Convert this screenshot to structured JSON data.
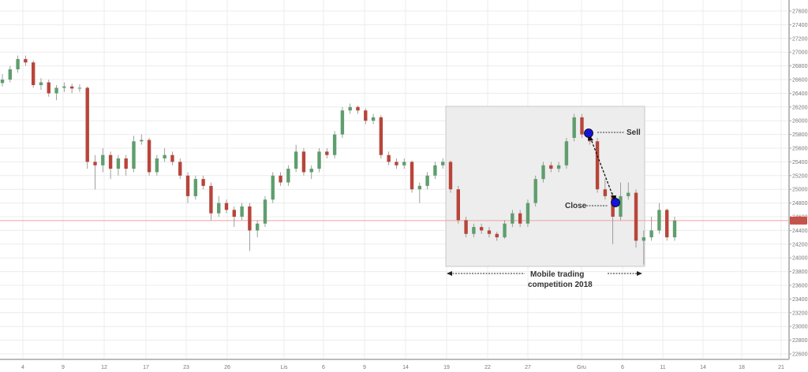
{
  "chart_data": {
    "type": "candlestick",
    "title": "",
    "ylim": [
      22500,
      27700
    ],
    "y_ticks": [
      22600,
      22800,
      23000,
      23200,
      23400,
      23600,
      23800,
      24000,
      24200,
      24400,
      24600,
      24800,
      25000,
      25200,
      25400,
      25600,
      25800,
      26000,
      26200,
      26400,
      26600,
      26800,
      27000,
      27200,
      27400,
      27600
    ],
    "x_tick_labels": [
      "4",
      "9",
      "12",
      "17",
      "23",
      "26",
      "Lis",
      "6",
      "9",
      "14",
      "19",
      "22",
      "27",
      "Gru",
      "6",
      "11",
      "14",
      "18",
      "21"
    ],
    "grid": true,
    "current_price": 24544,
    "colors": {
      "up": "#5f9e6e",
      "down": "#b8453a",
      "current_line": "#f0a0a0",
      "current_label_bg": "#d64a3f",
      "marker": "#1414d8",
      "highlight_box": "#ededed"
    },
    "candles_ohlc": [
      [
        26550,
        26680,
        26500,
        26600
      ],
      [
        26600,
        26800,
        26560,
        26750
      ],
      [
        26750,
        26950,
        26700,
        26900
      ],
      [
        26900,
        26950,
        26800,
        26850
      ],
      [
        26850,
        26880,
        26480,
        26520
      ],
      [
        26520,
        26620,
        26450,
        26560
      ],
      [
        26560,
        26600,
        26350,
        26400
      ],
      [
        26400,
        26520,
        26300,
        26480
      ],
      [
        26480,
        26560,
        26420,
        26500
      ],
      [
        26500,
        26540,
        26400,
        26470
      ],
      [
        26470,
        26530,
        26420,
        26480
      ],
      [
        26480,
        26500,
        25300,
        25400
      ],
      [
        25400,
        25500,
        25000,
        25350
      ],
      [
        25350,
        25600,
        25250,
        25500
      ],
      [
        25500,
        25550,
        25150,
        25300
      ],
      [
        25300,
        25500,
        25200,
        25450
      ],
      [
        25450,
        25500,
        25200,
        25300
      ],
      [
        25300,
        25780,
        25250,
        25700
      ],
      [
        25700,
        25800,
        25650,
        25720
      ],
      [
        25720,
        25750,
        25200,
        25250
      ],
      [
        25250,
        25500,
        25200,
        25450
      ],
      [
        25450,
        25600,
        25400,
        25500
      ],
      [
        25500,
        25550,
        25350,
        25400
      ],
      [
        25400,
        25450,
        25150,
        25200
      ],
      [
        25200,
        25250,
        24800,
        24900
      ],
      [
        24900,
        25200,
        24850,
        25150
      ],
      [
        25150,
        25200,
        25000,
        25050
      ],
      [
        25050,
        25100,
        24550,
        24650
      ],
      [
        24650,
        24900,
        24600,
        24800
      ],
      [
        24800,
        24850,
        24650,
        24700
      ],
      [
        24700,
        24750,
        24450,
        24600
      ],
      [
        24600,
        24800,
        24550,
        24750
      ],
      [
        24750,
        24800,
        24100,
        24400
      ],
      [
        24400,
        24550,
        24300,
        24500
      ],
      [
        24500,
        24900,
        24450,
        24850
      ],
      [
        24850,
        25250,
        24800,
        25200
      ],
      [
        25200,
        25250,
        25050,
        25100
      ],
      [
        25100,
        25350,
        25050,
        25300
      ],
      [
        25300,
        25650,
        25250,
        25550
      ],
      [
        25550,
        25600,
        25200,
        25250
      ],
      [
        25250,
        25350,
        25150,
        25300
      ],
      [
        25300,
        25600,
        25250,
        25550
      ],
      [
        25550,
        25600,
        25450,
        25500
      ],
      [
        25500,
        25850,
        25450,
        25800
      ],
      [
        25800,
        26200,
        25750,
        26150
      ],
      [
        26150,
        26250,
        26100,
        26200
      ],
      [
        26200,
        26220,
        26100,
        26150
      ],
      [
        26150,
        26180,
        25950,
        26000
      ],
      [
        26000,
        26100,
        25950,
        26050
      ],
      [
        26050,
        26080,
        25450,
        25500
      ],
      [
        25500,
        25550,
        25350,
        25400
      ],
      [
        25400,
        25450,
        25300,
        25350
      ],
      [
        25350,
        25450,
        25300,
        25400
      ],
      [
        25400,
        25420,
        24950,
        25000
      ],
      [
        25000,
        25100,
        24800,
        25050
      ],
      [
        25050,
        25250,
        25000,
        25200
      ],
      [
        25200,
        25400,
        25150,
        25350
      ],
      [
        25350,
        25450,
        25300,
        25400
      ],
      [
        25400,
        25420,
        24950,
        25000
      ],
      [
        25000,
        25050,
        24500,
        24550
      ],
      [
        24550,
        24600,
        24300,
        24350
      ],
      [
        24350,
        24500,
        24300,
        24450
      ],
      [
        24450,
        24500,
        24350,
        24400
      ],
      [
        24400,
        24450,
        24300,
        24350
      ],
      [
        24350,
        24380,
        24250,
        24300
      ],
      [
        24300,
        24550,
        24280,
        24500
      ],
      [
        24500,
        24700,
        24450,
        24650
      ],
      [
        24650,
        24700,
        24450,
        24500
      ],
      [
        24500,
        24850,
        24450,
        24800
      ],
      [
        24800,
        25200,
        24750,
        25150
      ],
      [
        25150,
        25400,
        25100,
        25350
      ],
      [
        25350,
        25400,
        25250,
        25300
      ],
      [
        25300,
        25400,
        25250,
        25350
      ],
      [
        25350,
        25750,
        25300,
        25700
      ],
      [
        25750,
        26100,
        25700,
        26050
      ],
      [
        26050,
        26100,
        25750,
        25800
      ],
      [
        25800,
        25850,
        25650,
        25700
      ],
      [
        25700,
        25750,
        24950,
        25000
      ],
      [
        25000,
        25150,
        24850,
        24900
      ],
      [
        24900,
        24950,
        24200,
        24600
      ],
      [
        24600,
        25100,
        24550,
        24900
      ],
      [
        24900,
        25100,
        24850,
        24950
      ],
      [
        24950,
        25000,
        24150,
        24250
      ],
      [
        24250,
        24400,
        23900,
        24300
      ],
      [
        24300,
        24600,
        24250,
        24400
      ],
      [
        24400,
        24800,
        24350,
        24700
      ],
      [
        24700,
        24720,
        24250,
        24300
      ],
      [
        24300,
        24600,
        24250,
        24544
      ]
    ],
    "annotations": {
      "sell": "Sell",
      "close": "Close",
      "period_line1": "Mobile trading",
      "period_line2": "competition 2018"
    }
  }
}
